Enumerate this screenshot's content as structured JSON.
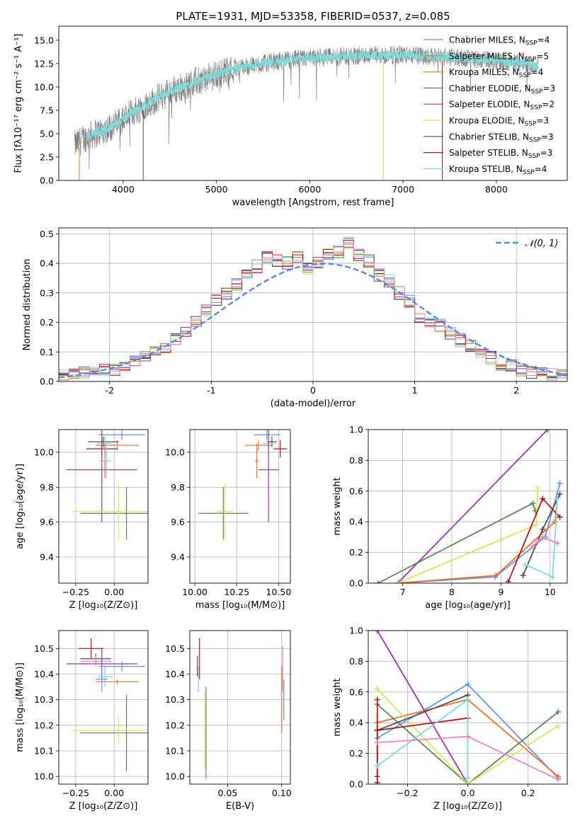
{
  "colors": {
    "Chabrier MILES": "#6495ed",
    "Salpeter MILES": "#e8742a",
    "Kroupa MILES": "#c8a020",
    "Chabrier ELODIE": "#5a8a5a",
    "Salpeter ELODIE": "#9a34b0",
    "Kroupa ELODIE": "#d4e85a",
    "Chabrier STELIB": "#505050",
    "Salpeter STELIB": "#b01818",
    "Kroupa STELIB": "#80dada",
    "extra_pink": "#e888c0",
    "gaussian": "#5b8bd6",
    "spectrum": "#808080"
  },
  "chart_data": [
    {
      "id": "spectrum",
      "type": "line",
      "title": "PLATE=1931, MJD=53358, FIBERID=0537, z=0.085",
      "xlabel": "wavelength [Angstrom, rest frame]",
      "ylabel": "Flux [fλ10⁻¹⁷ erg cm⁻² s⁻¹ A⁻¹]",
      "xlim": [
        3310,
        8760
      ],
      "ylim": [
        0,
        16.5
      ],
      "xticks": [
        4000,
        5000,
        6000,
        7000,
        8000
      ],
      "yticks": [
        0.0,
        2.5,
        5.0,
        7.5,
        10.0,
        12.5,
        15.0
      ],
      "grid": false,
      "legend_position": "right",
      "continuum": {
        "x": [
          3480,
          3600,
          3800,
          3950,
          4100,
          4300,
          4500,
          4800,
          5000,
          5200,
          5500,
          5800,
          6100,
          6400,
          6700,
          7000,
          7300,
          7600,
          7900,
          8200,
          8450
        ],
        "y": [
          3.8,
          4.6,
          5.4,
          6.2,
          7.3,
          8.4,
          9.5,
          10.6,
          11.3,
          12.0,
          12.5,
          12.9,
          13.1,
          13.3,
          13.4,
          13.4,
          13.3,
          13.1,
          12.9,
          12.6,
          12.3
        ]
      },
      "series_labels": [
        "Chabrier MILES, N",
        "Salpeter MILES, N",
        "Kroupa MILES, N",
        "Chabrier ELODIE, N",
        "Salpeter ELODIE, N",
        "Kroupa ELODIE, N",
        "Chabrier STELIB, N",
        "Salpeter STELIB, N",
        "Kroupa STELIB, N"
      ],
      "series_subscript": "SSP",
      "series_nssp": [
        "=4",
        "=5",
        "=4",
        "=3",
        "=2",
        "=3",
        "=3",
        "=3",
        "=4"
      ]
    },
    {
      "id": "residuals",
      "type": "histogram",
      "xlabel": "(data-model)/error",
      "ylabel": "Normed distribution",
      "xlim": [
        -2.5,
        2.5
      ],
      "ylim": [
        0,
        0.52
      ],
      "xticks": [
        -2,
        -1,
        0,
        1,
        2
      ],
      "yticks": [
        0.0,
        0.1,
        0.2,
        0.3,
        0.4,
        0.5
      ],
      "grid": true,
      "legend_position": "top-right",
      "legend_label": "𝒩(0, 1)",
      "bin_width": 0.1,
      "bin_centers": [
        -2.45,
        -2.35,
        -2.25,
        -2.15,
        -2.05,
        -1.95,
        -1.85,
        -1.75,
        -1.65,
        -1.55,
        -1.45,
        -1.35,
        -1.25,
        -1.15,
        -1.05,
        -0.95,
        -0.85,
        -0.75,
        -0.65,
        -0.55,
        -0.45,
        -0.35,
        -0.25,
        -0.15,
        -0.05,
        0.05,
        0.15,
        0.25,
        0.35,
        0.45,
        0.55,
        0.65,
        0.75,
        0.85,
        0.95,
        1.05,
        1.15,
        1.25,
        1.35,
        1.45,
        1.55,
        1.65,
        1.75,
        1.85,
        1.95,
        2.05,
        2.15,
        2.25,
        2.35,
        2.45
      ],
      "base_values": [
        0.018,
        0.022,
        0.028,
        0.032,
        0.036,
        0.041,
        0.05,
        0.07,
        0.09,
        0.105,
        0.115,
        0.14,
        0.17,
        0.2,
        0.24,
        0.28,
        0.3,
        0.33,
        0.36,
        0.39,
        0.42,
        0.41,
        0.4,
        0.42,
        0.38,
        0.4,
        0.43,
        0.44,
        0.47,
        0.43,
        0.41,
        0.36,
        0.34,
        0.3,
        0.27,
        0.22,
        0.2,
        0.19,
        0.16,
        0.14,
        0.12,
        0.1,
        0.08,
        0.06,
        0.05,
        0.04,
        0.032,
        0.027,
        0.022,
        0.028
      ],
      "gaussian_mean": 0.1,
      "gaussian_sigma": 1.0
    },
    {
      "id": "age-vs-Z",
      "type": "scatter",
      "xlabel": "Z [log₁₀(Z/Z⊙)]",
      "ylabel": "age  [log₁₀(age/yr)]",
      "xlim": [
        -0.36,
        0.22
      ],
      "ylim": [
        9.25,
        10.13
      ],
      "xticks": [
        -0.25,
        0.0
      ],
      "xticklabels": [
        "−0.25",
        "0.00"
      ],
      "yticks": [
        9.4,
        9.6,
        9.8,
        10.0
      ],
      "grid": true,
      "points": [
        {
          "x": 0.05,
          "y": 10.1,
          "xerr": 0.15,
          "yerr": 0.03,
          "c": "Chabrier MILES"
        },
        {
          "x": 0.02,
          "y": 10.04,
          "xerr": 0.14,
          "yerr": 0.03,
          "c": "Salpeter MILES"
        },
        {
          "x": -0.07,
          "y": 10.06,
          "xerr": 0.1,
          "yerr": 0.03,
          "c": "Chabrier STELIB"
        },
        {
          "x": -0.08,
          "y": 10.02,
          "xerr": 0.1,
          "yerr": 0.05,
          "c": "Salpeter STELIB"
        },
        {
          "x": -0.06,
          "y": 10.05,
          "xerr": 0.05,
          "yerr": 0.04,
          "c": "Kroupa STELIB"
        },
        {
          "x": -0.08,
          "y": 9.9,
          "xerr": 0.23,
          "yerr": 0.3,
          "c": "Salpeter ELODIE"
        },
        {
          "x": -0.06,
          "y": 9.95,
          "xerr": 0.03,
          "yerr": 0.1,
          "c": "Salpeter MILES"
        },
        {
          "x": -0.05,
          "y": 9.95,
          "xerr": 0.03,
          "yerr": 0.1,
          "c": "Kroupa STELIB"
        },
        {
          "x": 0.08,
          "y": 9.65,
          "xerr": 0.3,
          "yerr": 0.15,
          "c": "Chabrier ELODIE"
        },
        {
          "x": 0.03,
          "y": 9.66,
          "xerr": 0.3,
          "yerr": 0.16,
          "c": "Kroupa ELODIE"
        }
      ]
    },
    {
      "id": "age-vs-mass",
      "type": "scatter",
      "xlabel": "mass [log₁₀(M/M⊙)]",
      "ylabel": "",
      "xlim": [
        9.97,
        10.57
      ],
      "ylim": [
        9.25,
        10.13
      ],
      "xticks": [
        10.0,
        10.25,
        10.5
      ],
      "xticklabels": [
        "10.00",
        "10.25",
        "10.50"
      ],
      "yticks": [
        9.4,
        9.6,
        9.8,
        10.0
      ],
      "grid": true,
      "points": [
        {
          "x": 10.43,
          "y": 10.1,
          "xerr": 0.08,
          "yerr": 0.03,
          "c": "Chabrier MILES"
        },
        {
          "x": 10.38,
          "y": 10.04,
          "xerr": 0.08,
          "yerr": 0.03,
          "c": "Salpeter MILES"
        },
        {
          "x": 10.46,
          "y": 10.06,
          "xerr": 0.03,
          "yerr": 0.03,
          "c": "Chabrier STELIB"
        },
        {
          "x": 10.51,
          "y": 10.02,
          "xerr": 0.04,
          "yerr": 0.05,
          "c": "Salpeter STELIB"
        },
        {
          "x": 10.44,
          "y": 10.05,
          "xerr": 0.04,
          "yerr": 0.04,
          "c": "Kroupa STELIB"
        },
        {
          "x": 10.44,
          "y": 9.9,
          "xerr": 0.06,
          "yerr": 0.3,
          "c": "Salpeter ELODIE"
        },
        {
          "x": 10.37,
          "y": 9.95,
          "xerr": 0.01,
          "yerr": 0.1,
          "c": "Salpeter MILES"
        },
        {
          "x": 10.17,
          "y": 9.65,
          "xerr": 0.15,
          "yerr": 0.15,
          "c": "Chabrier ELODIE"
        },
        {
          "x": 10.18,
          "y": 9.66,
          "xerr": 0.05,
          "yerr": 0.16,
          "c": "Kroupa ELODIE"
        }
      ]
    },
    {
      "id": "massweight-vs-age",
      "type": "line",
      "xlabel": "age  [log₁₀(age/yr)]",
      "ylabel": "mass weight",
      "xlim": [
        6.3,
        10.35
      ],
      "ylim": [
        0,
        1.0
      ],
      "xticks": [
        7,
        8,
        9,
        10
      ],
      "yticks": [
        0.0,
        0.2,
        0.4,
        0.6,
        0.8,
        1.0
      ],
      "grid": true,
      "series": [
        {
          "c": "Chabrier MILES",
          "x": [
            6.9,
            8.88,
            9.9,
            10.2
          ],
          "y": [
            0.0,
            0.04,
            0.3,
            0.65
          ]
        },
        {
          "c": "Salpeter MILES",
          "x": [
            6.92,
            8.9,
            10.1,
            10.15
          ],
          "y": [
            0.0,
            0.05,
            0.4,
            0.55
          ]
        },
        {
          "c": "Chabrier ELODIE",
          "x": [
            6.5,
            9.65,
            9.7
          ],
          "y": [
            0.0,
            0.52,
            0.47
          ]
        },
        {
          "c": "Salpeter ELODIE",
          "x": [
            6.9,
            9.95
          ],
          "y": [
            0.0,
            1.0
          ]
        },
        {
          "c": "Kroupa ELODIE",
          "x": [
            6.9,
            9.72,
            9.75
          ],
          "y": [
            0.0,
            0.38,
            0.62
          ]
        },
        {
          "c": "Chabrier STELIB",
          "x": [
            9.45,
            9.85,
            10.2
          ],
          "y": [
            0.05,
            0.35,
            0.58
          ]
        },
        {
          "c": "Salpeter STELIB",
          "x": [
            9.15,
            9.85,
            10.2
          ],
          "y": [
            0.01,
            0.55,
            0.43
          ]
        },
        {
          "c": "Kroupa STELIB",
          "x": [
            9.5,
            10.05,
            10.15
          ],
          "y": [
            0.12,
            0.04,
            0.55
          ]
        },
        {
          "c": "extra_pink",
          "x": [
            9.65,
            9.75,
            9.85,
            10.15
          ],
          "y": [
            0.24,
            0.27,
            0.3,
            0.26
          ]
        }
      ]
    },
    {
      "id": "mass-vs-Z",
      "type": "scatter",
      "xlabel": "Z [log₁₀(Z/Z⊙)]",
      "ylabel": "mass [log₁₀(M/M⊙)]",
      "xlim": [
        -0.36,
        0.22
      ],
      "ylim": [
        9.97,
        10.57
      ],
      "xticks": [
        -0.25,
        0.0
      ],
      "xticklabels": [
        "−0.25",
        "0.00"
      ],
      "yticks": [
        10.0,
        10.1,
        10.2,
        10.3,
        10.4,
        10.5
      ],
      "grid": true,
      "points": [
        {
          "x": -0.15,
          "y": 10.5,
          "xerr": 0.08,
          "yerr": 0.04,
          "c": "Salpeter STELIB"
        },
        {
          "x": -0.12,
          "y": 10.46,
          "xerr": 0.1,
          "yerr": 0.02,
          "c": "Chabrier STELIB"
        },
        {
          "x": -0.08,
          "y": 10.44,
          "xerr": 0.23,
          "yerr": 0.06,
          "c": "Salpeter ELODIE"
        },
        {
          "x": 0.05,
          "y": 10.43,
          "xerr": 0.15,
          "yerr": 0.02,
          "c": "Chabrier MILES"
        },
        {
          "x": -0.12,
          "y": 10.45,
          "xerr": 0.1,
          "yerr": 0.02,
          "c": "extra_pink"
        },
        {
          "x": -0.06,
          "y": 10.39,
          "xerr": 0.05,
          "yerr": 0.04,
          "c": "Kroupa STELIB"
        },
        {
          "x": 0.02,
          "y": 10.37,
          "xerr": 0.14,
          "yerr": 0.01,
          "c": "Salpeter MILES"
        },
        {
          "x": -0.08,
          "y": 10.38,
          "xerr": 0.04,
          "yerr": 0.05,
          "c": "Chabrier MILES"
        },
        {
          "x": 0.08,
          "y": 10.17,
          "xerr": 0.3,
          "yerr": 0.15,
          "c": "Chabrier ELODIE"
        },
        {
          "x": 0.03,
          "y": 10.18,
          "xerr": 0.3,
          "yerr": 0.05,
          "c": "Kroupa ELODIE"
        }
      ]
    },
    {
      "id": "mass-vs-EBV",
      "type": "scatter",
      "xlabel": "E(B-V)",
      "ylabel": "",
      "xlim": [
        0.015,
        0.108
      ],
      "ylim": [
        9.97,
        10.57
      ],
      "xticks": [
        0.05,
        0.1
      ],
      "xticklabels": [
        "0.05",
        "0.10"
      ],
      "yticks": [
        10.0,
        10.1,
        10.2,
        10.3,
        10.4,
        10.5
      ],
      "grid": true,
      "points": [
        {
          "x": 0.022,
          "y": 10.43,
          "xerr": 0,
          "yerr": 0.04,
          "c": "Chabrier STELIB"
        },
        {
          "x": 0.023,
          "y": 10.38,
          "xerr": 0,
          "yerr": 0.05,
          "c": "Kroupa STELIB"
        },
        {
          "x": 0.024,
          "y": 10.46,
          "xerr": 0,
          "yerr": 0.08,
          "c": "Salpeter STELIB"
        },
        {
          "x": 0.03,
          "y": 10.17,
          "xerr": 0,
          "yerr": 0.18,
          "c": "Chabrier ELODIE"
        },
        {
          "x": 0.029,
          "y": 10.18,
          "xerr": 0,
          "yerr": 0.15,
          "c": "Kroupa ELODIE"
        },
        {
          "x": 0.1,
          "y": 10.3,
          "xerr": 0,
          "yerr": 0.13,
          "c": "Salpeter MILES"
        },
        {
          "x": 0.101,
          "y": 10.42,
          "xerr": 0,
          "yerr": 0.09,
          "c": "extra_pink"
        },
        {
          "x": 0.102,
          "y": 10.3,
          "xerr": 0,
          "yerr": 0.08,
          "c": "Chabrier MILES"
        }
      ]
    },
    {
      "id": "massweight-vs-Z",
      "type": "line",
      "xlabel": "Z [log₁₀(Z/Z⊙)]",
      "ylabel": "mass weight",
      "xlim": [
        -0.33,
        0.33
      ],
      "ylim": [
        0,
        1.0
      ],
      "xticks": [
        -0.2,
        0.0,
        0.2
      ],
      "xticklabels": [
        "−0.2",
        "0.0",
        "0.2"
      ],
      "yticks": [
        0.0,
        0.2,
        0.4,
        0.6,
        0.8,
        1.0
      ],
      "grid": true,
      "series": [
        {
          "c": "Chabrier MILES",
          "x": [
            -0.3,
            0.0,
            0.3
          ],
          "y": [
            0.3,
            0.65,
            0.04
          ]
        },
        {
          "c": "Salpeter MILES",
          "x": [
            -0.3,
            0.0,
            0.3
          ],
          "y": [
            0.4,
            0.55,
            0.05
          ]
        },
        {
          "c": "Chabrier ELODIE",
          "x": [
            -0.3,
            0.0,
            0.3
          ],
          "y": [
            0.52,
            0.0,
            0.47
          ]
        },
        {
          "c": "Salpeter ELODIE",
          "x": [
            -0.3,
            0.0
          ],
          "y": [
            1.0,
            0.0
          ]
        },
        {
          "c": "Kroupa ELODIE",
          "x": [
            -0.3,
            0.0,
            0.3
          ],
          "y": [
            0.62,
            0.0,
            0.38
          ]
        },
        {
          "c": "Chabrier STELIB",
          "x": [
            -0.3,
            -0.3,
            0.0
          ],
          "y": [
            0.05,
            0.35,
            0.58
          ]
        },
        {
          "c": "Salpeter STELIB",
          "x": [
            -0.3,
            -0.3,
            -0.3,
            0.0
          ],
          "y": [
            0.01,
            0.55,
            0.35,
            0.43
          ]
        },
        {
          "c": "Kroupa STELIB",
          "x": [
            -0.3,
            0.0,
            0.0
          ],
          "y": [
            0.12,
            0.55,
            0.04
          ]
        },
        {
          "c": "extra_pink",
          "x": [
            -0.3,
            0.0,
            0.3
          ],
          "y": [
            0.27,
            0.31,
            0.03
          ]
        }
      ]
    }
  ]
}
